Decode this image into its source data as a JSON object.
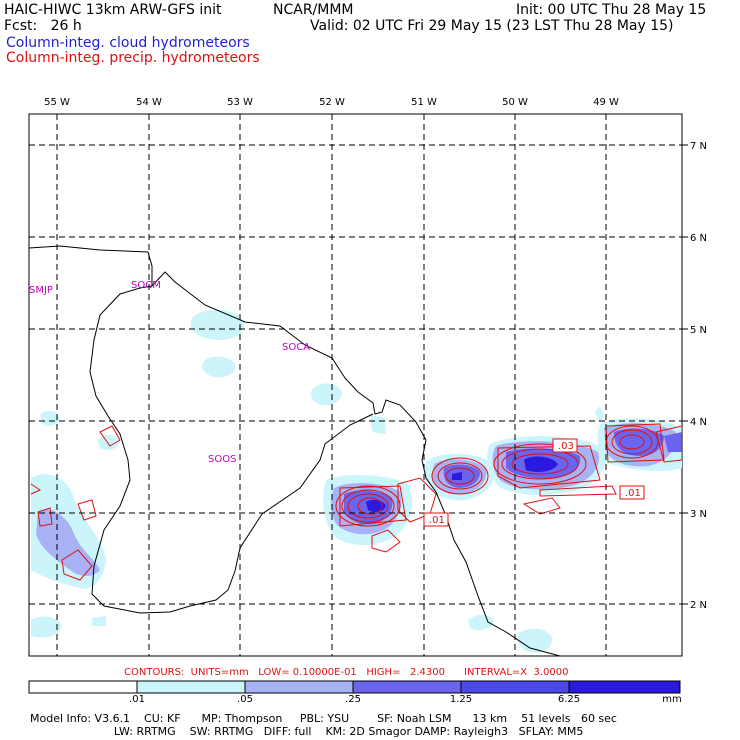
{
  "header": {
    "model_title": "HAIC-HIWC 13km ARW-GFS init",
    "source": "NCAR/MMM",
    "init": "Init: 00 UTC Thu 28 May 15",
    "forecast": "Fcst:   26 h",
    "valid": "Valid: 02 UTC Fri 29 May 15 (23 LST Thu 28 May 15)",
    "field_cloud": "Column-integ. cloud hydrometeors",
    "field_precip": "Column-integ. precip. hydrometeors"
  },
  "map": {
    "longitude_labels": [
      "55 W",
      "54 W",
      "53 W",
      "52 W",
      "51 W",
      "50 W",
      "49 W"
    ],
    "latitude_labels": [
      "7 N",
      "6 N",
      "5 N",
      "4 N",
      "3 N",
      "2 N"
    ],
    "stations": [
      "SMJP",
      "SOCM",
      "SOCA",
      "SOOS"
    ],
    "contour_tags": [
      ".03",
      ".01",
      ".01"
    ],
    "colors": {
      "cloud_fill_light": "#ccf4fb",
      "cloud_fill_mid": "#a8b2f4",
      "cloud_fill_dark": "#6a64ee",
      "cloud_fill_core": "#2a1ae0",
      "precip_contour": "#e01010",
      "coast": "#000000"
    }
  },
  "contours_info": {
    "text": "CONTOURS:  UNITS=mm   LOW= 0.10000E-01   HIGH=   2.4300      INTERVAL=X  3.0000"
  },
  "colorbar": {
    "labels": [
      ".01",
      ".05",
      ".25",
      "1.25",
      "6.25",
      "mm"
    ],
    "colors": [
      "#ffffff",
      "#ccf4fb",
      "#a8b2f4",
      "#6a64ee",
      "#4e48ec",
      "#2a1ae0"
    ]
  },
  "footer": {
    "line1": "Model Info: V3.6.1    CU: KF      MP: Thompson     PBL: YSU        SF: Noah LSM      13 km    51 levels   60 sec",
    "line2": "                        LW: RRTMG    SW: RRTMG   DIFF: full    KM: 2D Smagor DAMP: Rayleigh3   SFLAY: MM5"
  }
}
